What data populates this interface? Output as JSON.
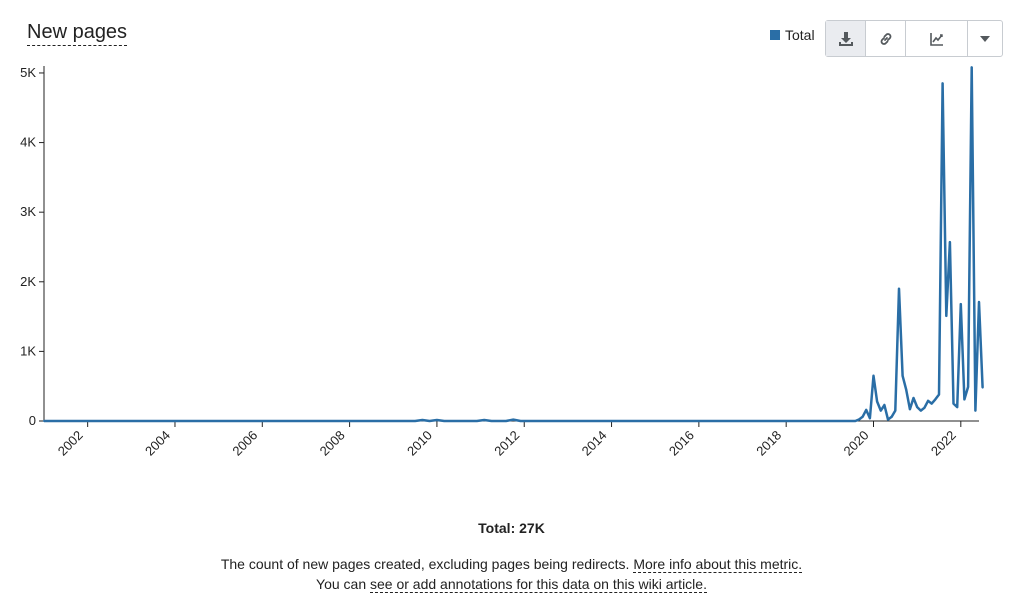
{
  "header": {
    "title": "New pages"
  },
  "toolbar": {
    "download_icon": "download-icon",
    "link_icon": "link-icon",
    "chart_type_icon": "line-chart-icon",
    "dropdown_icon": "caret-down-icon"
  },
  "colors": {
    "series": "#2a6ea6",
    "axis": "#222222",
    "toolbar_active": "#eaecf0"
  },
  "chart_data": {
    "type": "line",
    "legend": [
      "Total"
    ],
    "legend_position": "top-right",
    "grid": false,
    "ylim": [
      0,
      5100
    ],
    "xlim": [
      "2001-01",
      "2022-06"
    ],
    "yticks": [
      0,
      1000,
      2000,
      3000,
      4000,
      5000
    ],
    "ytick_labels": [
      "0",
      "1K",
      "2K",
      "3K",
      "4K",
      "5K"
    ],
    "xtick_labels": [
      "2002",
      "2004",
      "2006",
      "2008",
      "2010",
      "2012",
      "2014",
      "2016",
      "2018",
      "2020",
      "2022"
    ],
    "series": [
      {
        "name": "Total",
        "points": [
          [
            "2001-01",
            0
          ],
          [
            "2009-07",
            0
          ],
          [
            "2009-09",
            15
          ],
          [
            "2009-11",
            0
          ],
          [
            "2010-01",
            15
          ],
          [
            "2010-03",
            0
          ],
          [
            "2010-12",
            0
          ],
          [
            "2011-02",
            15
          ],
          [
            "2011-04",
            0
          ],
          [
            "2011-08",
            0
          ],
          [
            "2011-10",
            20
          ],
          [
            "2011-12",
            0
          ],
          [
            "2019-08",
            0
          ],
          [
            "2019-09",
            20
          ],
          [
            "2019-10",
            60
          ],
          [
            "2019-11",
            160
          ],
          [
            "2019-12",
            40
          ],
          [
            "2020-01",
            650
          ],
          [
            "2020-02",
            280
          ],
          [
            "2020-03",
            150
          ],
          [
            "2020-04",
            230
          ],
          [
            "2020-05",
            20
          ],
          [
            "2020-06",
            60
          ],
          [
            "2020-07",
            150
          ],
          [
            "2020-08",
            1900
          ],
          [
            "2020-09",
            650
          ],
          [
            "2020-10",
            450
          ],
          [
            "2020-11",
            170
          ],
          [
            "2020-12",
            330
          ],
          [
            "2021-01",
            200
          ],
          [
            "2021-02",
            150
          ],
          [
            "2021-03",
            190
          ],
          [
            "2021-04",
            290
          ],
          [
            "2021-05",
            250
          ],
          [
            "2021-06",
            310
          ],
          [
            "2021-07",
            380
          ],
          [
            "2021-08",
            4850
          ],
          [
            "2021-09",
            1510
          ],
          [
            "2021-10",
            2570
          ],
          [
            "2021-11",
            250
          ],
          [
            "2021-12",
            200
          ],
          [
            "2022-01",
            1680
          ],
          [
            "2022-02",
            310
          ],
          [
            "2022-03",
            490
          ],
          [
            "2022-04",
            5080
          ],
          [
            "2022-05",
            150
          ],
          [
            "2022-06",
            1710
          ],
          [
            "2022-07",
            480
          ]
        ]
      }
    ]
  },
  "footer": {
    "total": "Total: 27K",
    "desc_text": "The count of new pages created, excluding pages being redirects.",
    "more_info_link": "More info about this metric.",
    "annot_prefix": "You can",
    "annot_link": "see or add annotations for this data on this wiki article."
  }
}
